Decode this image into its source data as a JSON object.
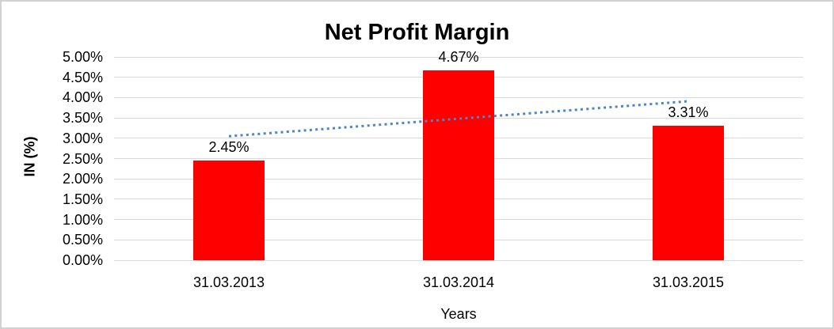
{
  "chart_data": {
    "type": "bar",
    "title": "Net Profit Margin",
    "xlabel": "Years",
    "ylabel": "IN (%)",
    "categories": [
      "31.03.2013",
      "31.03.2014",
      "31.03.2015"
    ],
    "values": [
      2.45,
      4.67,
      3.31
    ],
    "data_labels": [
      "2.45%",
      "4.67%",
      "3.31%"
    ],
    "y_ticks": [
      "5.00%",
      "4.50%",
      "4.00%",
      "3.50%",
      "3.00%",
      "2.50%",
      "2.00%",
      "1.50%",
      "1.00%",
      "0.50%",
      "0.00%"
    ],
    "ylim": [
      0,
      5
    ],
    "y_tick_step": 0.5,
    "grid": true,
    "legend": false,
    "bar_color": "#ff0000",
    "gridline_color": "#d9d9d9",
    "trendline": {
      "type": "linear",
      "style": "dotted",
      "color": "#4a86c8",
      "start_value": 3.05,
      "end_value": 3.91
    }
  }
}
